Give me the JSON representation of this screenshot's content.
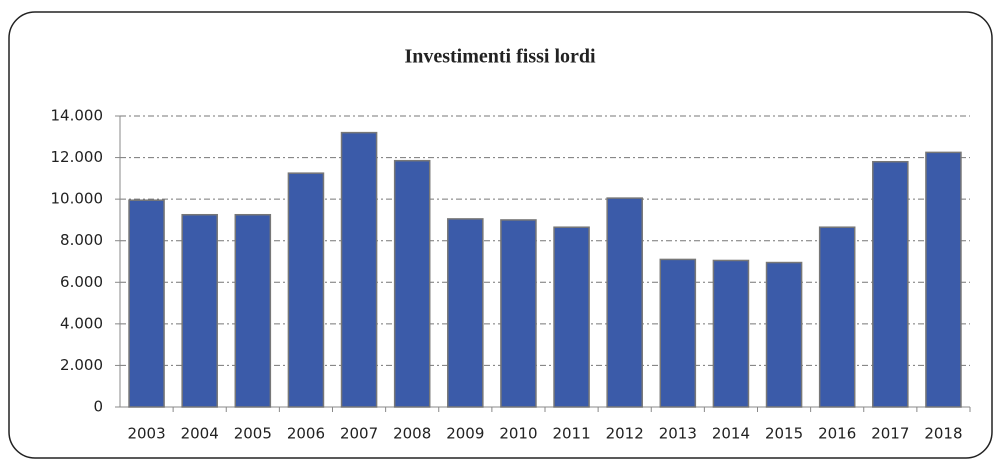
{
  "chart_data": {
    "type": "bar",
    "title": "Investimenti fissi lordi",
    "categories": [
      "2003",
      "2004",
      "2005",
      "2006",
      "2007",
      "2008",
      "2009",
      "2010",
      "2011",
      "2012",
      "2013",
      "2014",
      "2015",
      "2016",
      "2017",
      "2018"
    ],
    "values": [
      9950,
      9250,
      9250,
      11250,
      13200,
      11850,
      9050,
      9000,
      8650,
      10050,
      7100,
      7050,
      6950,
      8650,
      11800,
      12250
    ],
    "color": "#3b5ba9",
    "ylim": [
      0,
      14000
    ],
    "yticks": [
      0,
      {
        "value": 2000,
        "label": "2.000"
      },
      {
        "value": 4000,
        "label": "4.000"
      },
      {
        "value": 6000,
        "label": "6.000"
      },
      {
        "value": 8000,
        "label": "8.000"
      },
      {
        "value": 10000,
        "label": "10.000"
      },
      {
        "value": 12000,
        "label": "12.000"
      },
      {
        "value": 14000,
        "label": "14.000"
      }
    ],
    "grid": true
  }
}
